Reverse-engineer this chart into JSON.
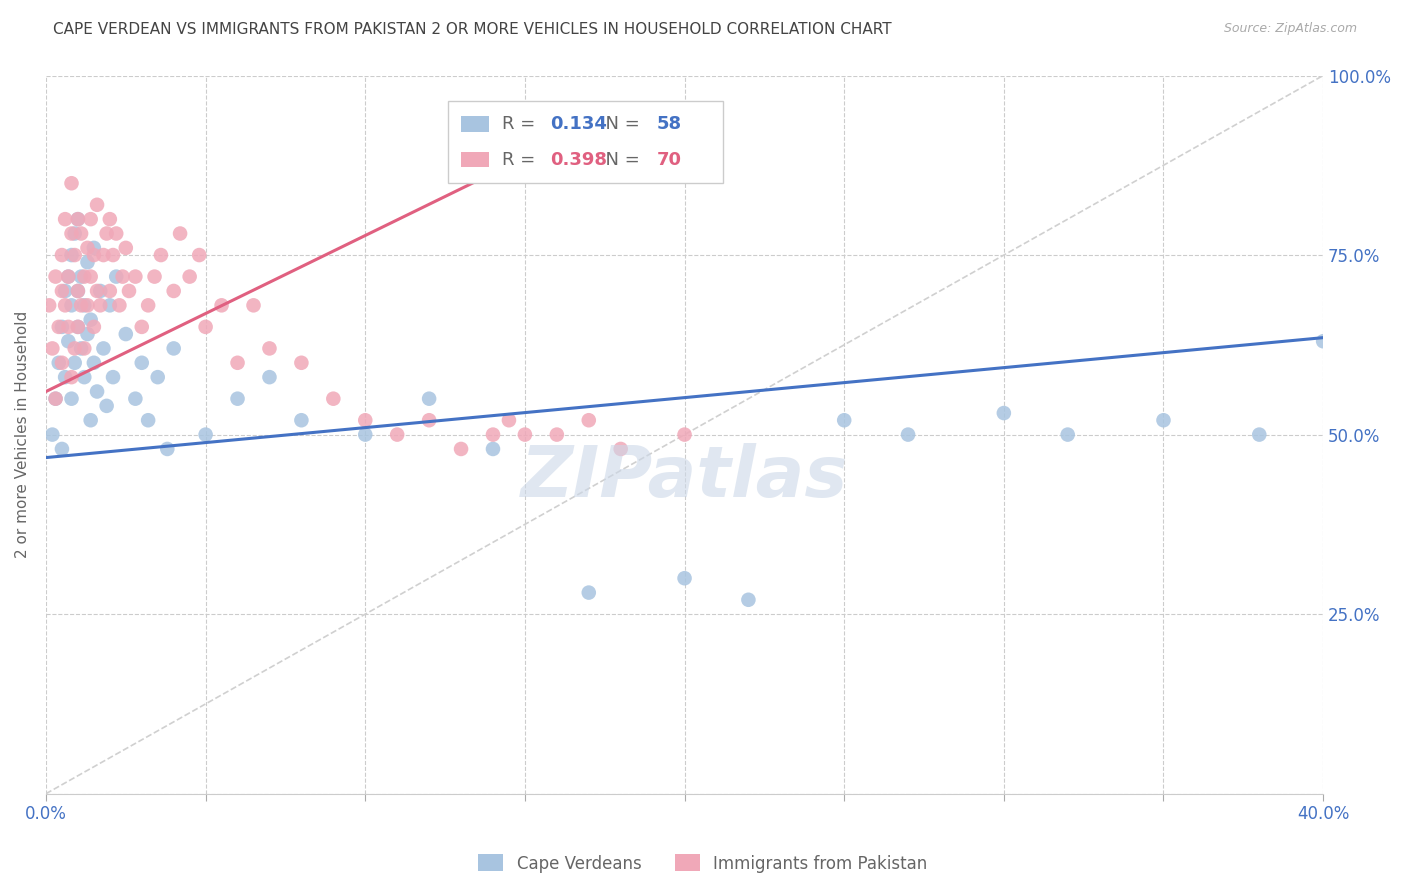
{
  "title": "CAPE VERDEAN VS IMMIGRANTS FROM PAKISTAN 2 OR MORE VEHICLES IN HOUSEHOLD CORRELATION CHART",
  "source_text": "Source: ZipAtlas.com",
  "ylabel": "2 or more Vehicles in Household",
  "x_min": 0.0,
  "x_max": 0.4,
  "y_min": 0.0,
  "y_max": 1.0,
  "x_ticks": [
    0.0,
    0.05,
    0.1,
    0.15,
    0.2,
    0.25,
    0.3,
    0.35,
    0.4
  ],
  "y_ticks": [
    0.0,
    0.25,
    0.5,
    0.75,
    1.0
  ],
  "blue_R": "0.134",
  "blue_N": "58",
  "pink_R": "0.398",
  "pink_N": "70",
  "blue_color": "#a8c4e0",
  "pink_color": "#f0a8b8",
  "blue_line_color": "#4472c4",
  "pink_line_color": "#e06080",
  "dashed_line_color": "#d0d0d0",
  "axis_color": "#4472c4",
  "title_color": "#444444",
  "watermark_color": "#ccd8e8",
  "blue_scatter_x": [
    0.002,
    0.003,
    0.004,
    0.005,
    0.005,
    0.006,
    0.006,
    0.007,
    0.007,
    0.008,
    0.008,
    0.008,
    0.009,
    0.009,
    0.01,
    0.01,
    0.01,
    0.011,
    0.011,
    0.012,
    0.012,
    0.013,
    0.013,
    0.014,
    0.014,
    0.015,
    0.015,
    0.016,
    0.017,
    0.018,
    0.019,
    0.02,
    0.021,
    0.022,
    0.025,
    0.028,
    0.03,
    0.032,
    0.035,
    0.038,
    0.04,
    0.05,
    0.06,
    0.07,
    0.08,
    0.1,
    0.12,
    0.14,
    0.17,
    0.2,
    0.22,
    0.25,
    0.27,
    0.3,
    0.32,
    0.35,
    0.38,
    0.4
  ],
  "blue_scatter_y": [
    0.5,
    0.55,
    0.6,
    0.48,
    0.65,
    0.7,
    0.58,
    0.63,
    0.72,
    0.68,
    0.75,
    0.55,
    0.6,
    0.78,
    0.65,
    0.7,
    0.8,
    0.62,
    0.72,
    0.58,
    0.68,
    0.64,
    0.74,
    0.52,
    0.66,
    0.6,
    0.76,
    0.56,
    0.7,
    0.62,
    0.54,
    0.68,
    0.58,
    0.72,
    0.64,
    0.55,
    0.6,
    0.52,
    0.58,
    0.48,
    0.62,
    0.5,
    0.55,
    0.58,
    0.52,
    0.5,
    0.55,
    0.48,
    0.28,
    0.3,
    0.27,
    0.52,
    0.5,
    0.53,
    0.5,
    0.52,
    0.5,
    0.63
  ],
  "pink_scatter_x": [
    0.001,
    0.002,
    0.003,
    0.003,
    0.004,
    0.005,
    0.005,
    0.005,
    0.006,
    0.006,
    0.007,
    0.007,
    0.008,
    0.008,
    0.008,
    0.009,
    0.009,
    0.01,
    0.01,
    0.01,
    0.011,
    0.011,
    0.012,
    0.012,
    0.013,
    0.013,
    0.014,
    0.014,
    0.015,
    0.015,
    0.016,
    0.016,
    0.017,
    0.018,
    0.019,
    0.02,
    0.02,
    0.021,
    0.022,
    0.023,
    0.024,
    0.025,
    0.026,
    0.028,
    0.03,
    0.032,
    0.034,
    0.036,
    0.04,
    0.042,
    0.045,
    0.048,
    0.05,
    0.055,
    0.06,
    0.065,
    0.07,
    0.08,
    0.09,
    0.1,
    0.11,
    0.12,
    0.13,
    0.14,
    0.145,
    0.15,
    0.16,
    0.17,
    0.18,
    0.2
  ],
  "pink_scatter_y": [
    0.68,
    0.62,
    0.72,
    0.55,
    0.65,
    0.7,
    0.6,
    0.75,
    0.68,
    0.8,
    0.65,
    0.72,
    0.78,
    0.58,
    0.85,
    0.62,
    0.75,
    0.7,
    0.8,
    0.65,
    0.68,
    0.78,
    0.72,
    0.62,
    0.76,
    0.68,
    0.72,
    0.8,
    0.65,
    0.75,
    0.7,
    0.82,
    0.68,
    0.75,
    0.78,
    0.7,
    0.8,
    0.75,
    0.78,
    0.68,
    0.72,
    0.76,
    0.7,
    0.72,
    0.65,
    0.68,
    0.72,
    0.75,
    0.7,
    0.78,
    0.72,
    0.75,
    0.65,
    0.68,
    0.6,
    0.68,
    0.62,
    0.6,
    0.55,
    0.52,
    0.5,
    0.52,
    0.48,
    0.5,
    0.52,
    0.5,
    0.5,
    0.52,
    0.48,
    0.5
  ],
  "blue_line_x0": 0.0,
  "blue_line_x1": 0.4,
  "blue_line_y0": 0.468,
  "blue_line_y1": 0.635,
  "pink_line_x0": 0.0,
  "pink_line_x1": 0.145,
  "pink_line_y0": 0.56,
  "pink_line_y1": 0.875
}
